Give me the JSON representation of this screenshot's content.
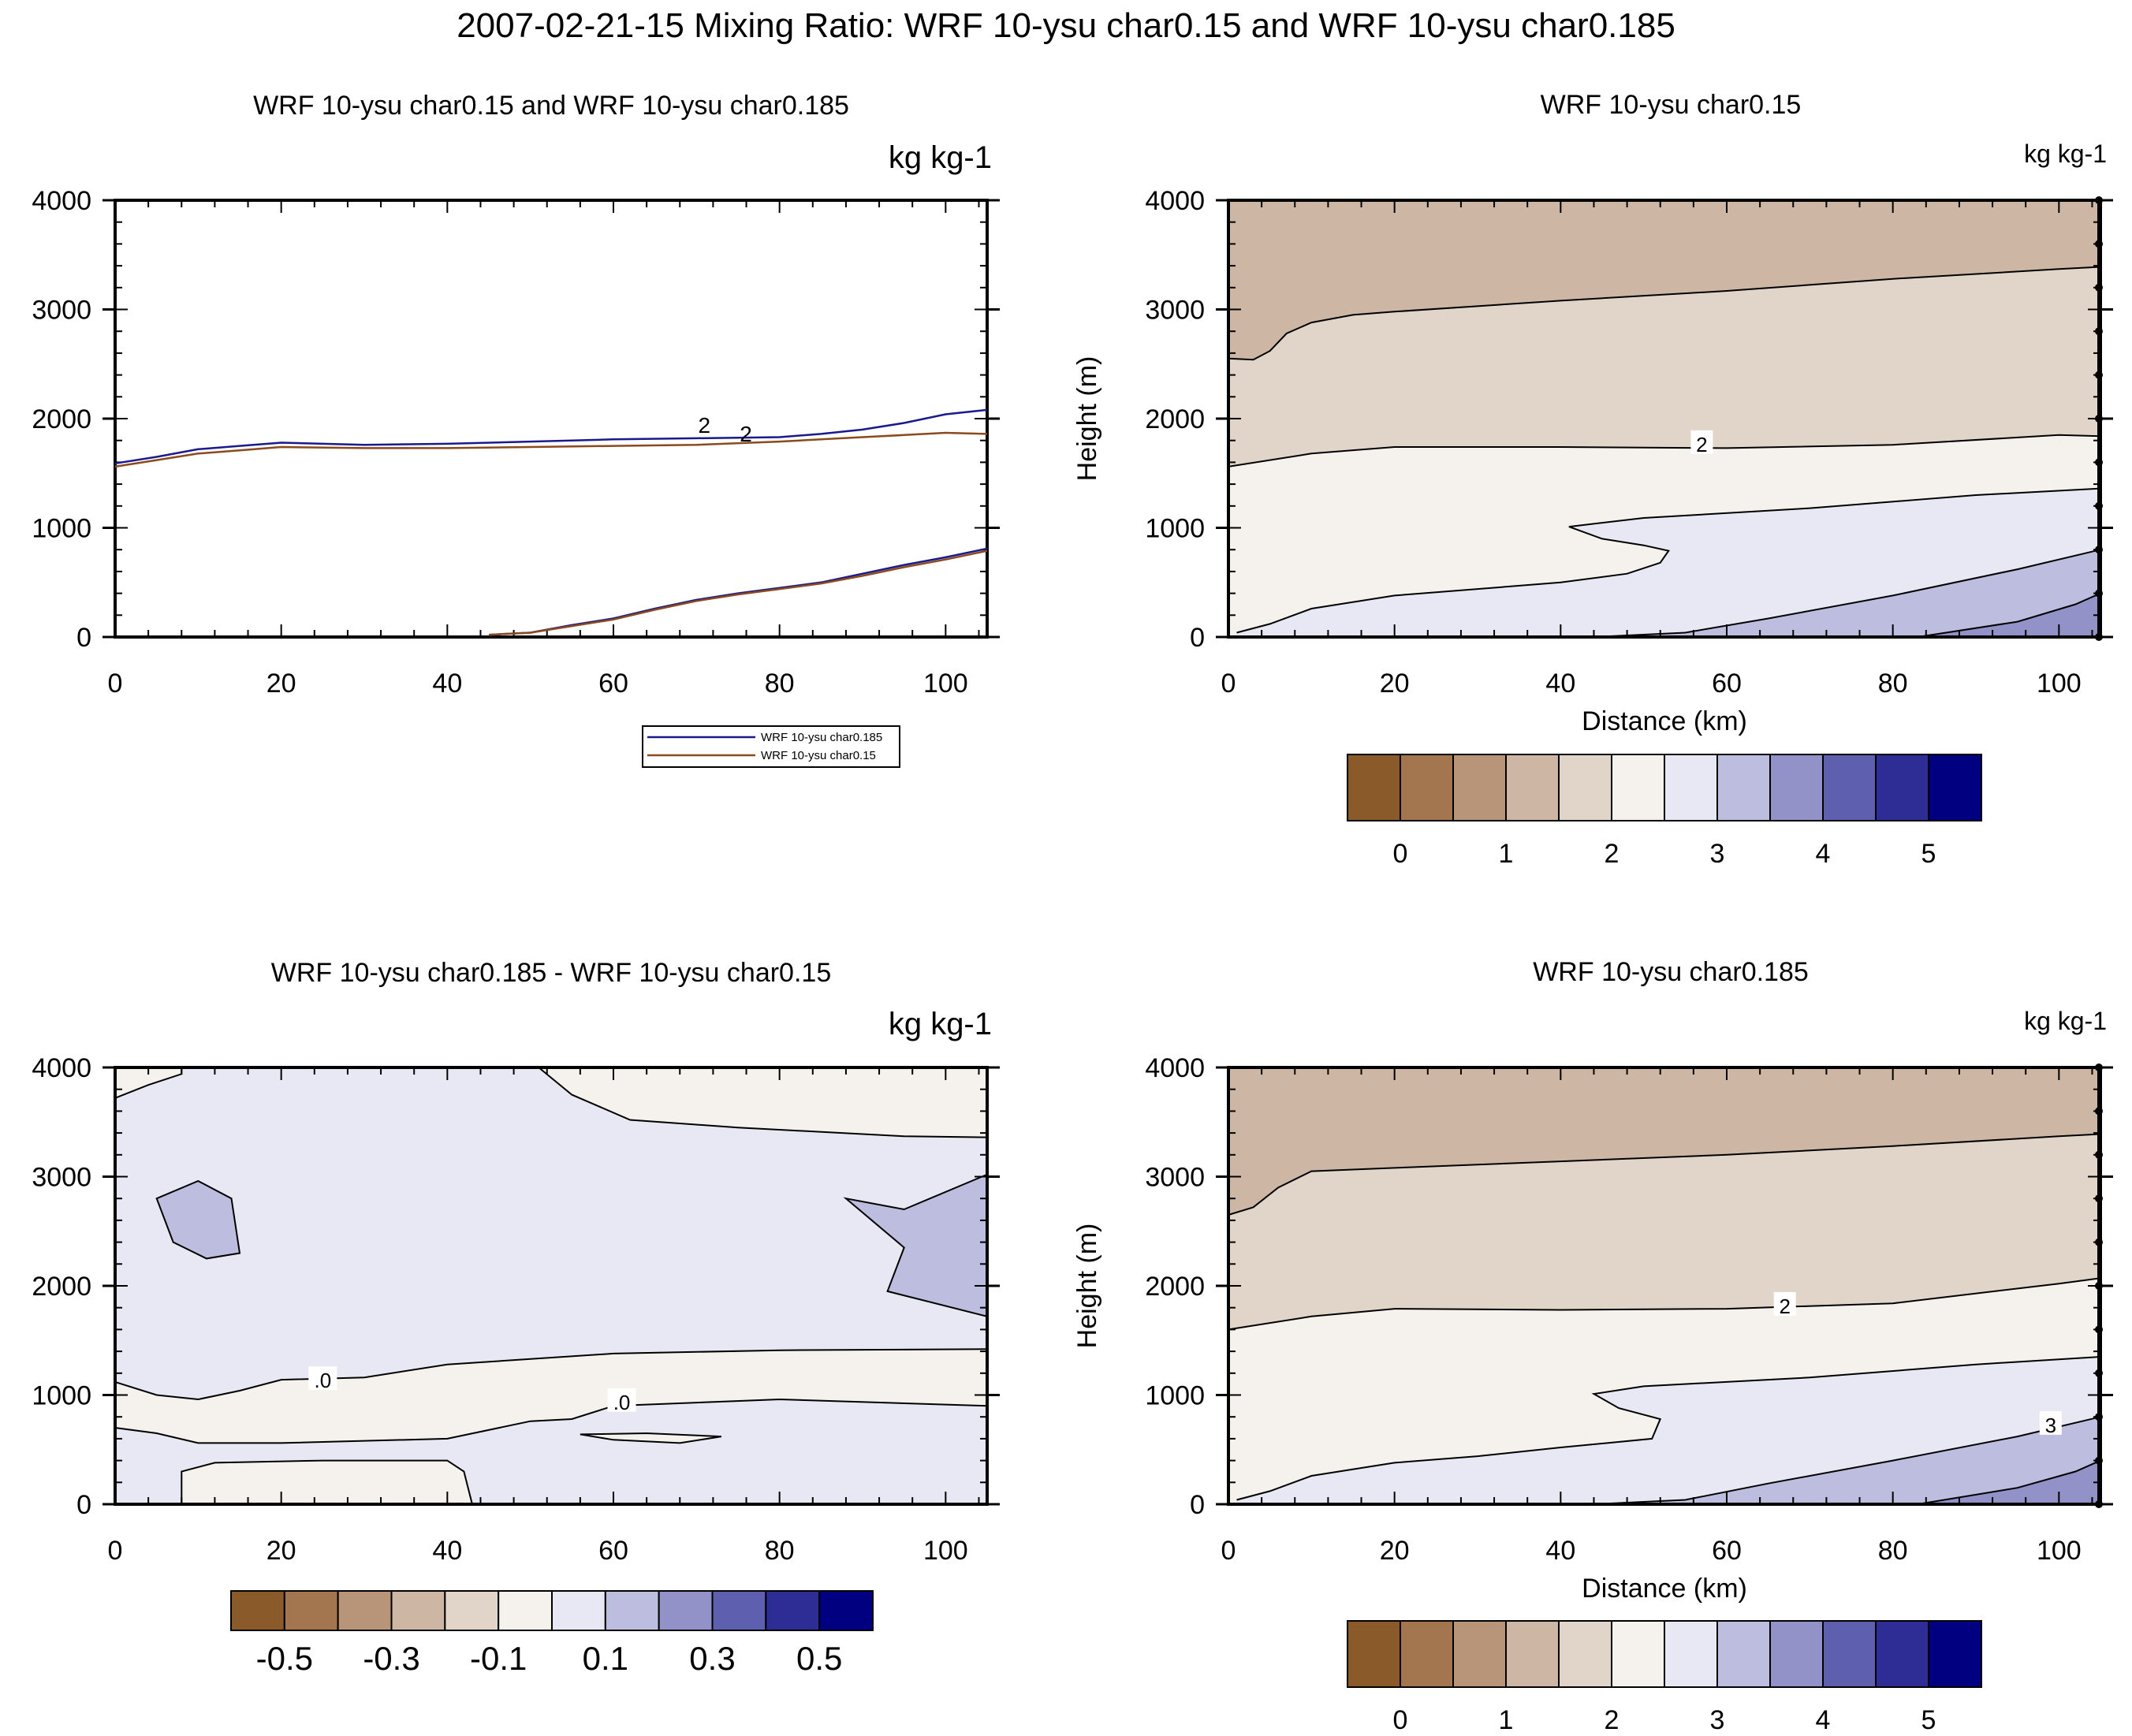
{
  "page_title": "2007-02-21-15 Mixing Ratio: WRF 10-ysu char0.15 and WRF 10-ysu char0.185",
  "colors": {
    "series_185": "#1a1a8c",
    "series_15": "#8b4a1e",
    "palette": [
      "#8b5a2b",
      "#a47650",
      "#b89478",
      "#cdb6a3",
      "#e1d5c9",
      "#f5f2ed",
      "#e8e8f4",
      "#bdbddf",
      "#9292c8",
      "#5f5fb0",
      "#2d2d95",
      "#000080"
    ]
  },
  "panels": {
    "tl": {
      "title": "WRF 10-ysu char0.15 and WRF 10-ysu char0.185",
      "units": "kg kg-1"
    },
    "tr": {
      "title": "WRF 10-ysu char0.15",
      "units": "kg kg-1",
      "xlabel": "Distance (km)",
      "ylabel": "Height (m)"
    },
    "bl": {
      "title": "WRF 10-ysu char0.185 - WRF 10-ysu char0.15",
      "units": "kg kg-1"
    },
    "br": {
      "title": "WRF 10-ysu char0.185",
      "units": "kg kg-1",
      "xlabel": "Distance (km)",
      "ylabel": "Height (m)"
    }
  },
  "legend": [
    "WRF 10-ysu char0.185",
    "WRF 10-ysu char0.15"
  ],
  "colorbars": {
    "mixing_ratio": [
      "0",
      "1",
      "2",
      "3",
      "4",
      "5"
    ],
    "difference": [
      "-0.5",
      "-0.3",
      "-0.1",
      "0.1",
      "0.3",
      "0.5"
    ]
  },
  "chart_data": [
    {
      "type": "line",
      "panel": "tl",
      "title": "WRF 10-ysu char0.15 and WRF 10-ysu char0.185",
      "units": "kg kg-1",
      "xlim": [
        0,
        105
      ],
      "ylim": [
        0,
        4000
      ],
      "xticks": [
        0,
        20,
        40,
        60,
        80,
        100
      ],
      "yticks": [
        0,
        1000,
        2000,
        3000,
        4000
      ],
      "series": [
        {
          "name": "WRF 10-ysu char0.185",
          "contour_label": "2",
          "x": [
            0,
            5,
            10,
            15,
            20,
            30,
            40,
            50,
            60,
            70,
            80,
            85,
            90,
            95,
            100,
            105
          ],
          "y": [
            1590,
            1650,
            1720,
            1750,
            1780,
            1760,
            1770,
            1790,
            1810,
            1820,
            1830,
            1860,
            1900,
            1960,
            2040,
            2080
          ]
        },
        {
          "name": "WRF 10-ysu char0.185",
          "x": [
            45,
            50,
            55,
            60,
            65,
            70,
            75,
            80,
            85,
            90,
            95,
            100,
            105
          ],
          "y": [
            20,
            40,
            110,
            170,
            260,
            340,
            400,
            450,
            500,
            580,
            660,
            730,
            810
          ]
        },
        {
          "name": "WRF 10-ysu char0.15",
          "contour_label": "2",
          "x": [
            0,
            5,
            10,
            15,
            20,
            30,
            40,
            50,
            60,
            70,
            80,
            85,
            90,
            95,
            100,
            105
          ],
          "y": [
            1560,
            1620,
            1680,
            1710,
            1740,
            1730,
            1730,
            1740,
            1750,
            1760,
            1790,
            1810,
            1830,
            1850,
            1870,
            1860
          ]
        },
        {
          "name": "WRF 10-ysu char0.15",
          "x": [
            45,
            50,
            55,
            60,
            65,
            70,
            75,
            80,
            85,
            90,
            95,
            100,
            105
          ],
          "y": [
            20,
            40,
            100,
            160,
            250,
            330,
            390,
            440,
            490,
            560,
            640,
            710,
            790
          ]
        }
      ],
      "legend_placement": "bottom-center"
    },
    {
      "type": "filled-contour",
      "panel": "tr",
      "title": "WRF 10-ysu char0.15",
      "units": "kg kg-1",
      "xlabel": "Distance (km)",
      "ylabel": "Height (m)",
      "xlim": [
        0,
        105
      ],
      "ylim": [
        0,
        4000
      ],
      "xticks": [
        0,
        20,
        40,
        60,
        80,
        100
      ],
      "yticks": [
        0,
        1000,
        2000,
        3000,
        4000
      ],
      "contour_labels": [
        {
          "x": 57,
          "y": 1770,
          "text": "2"
        }
      ],
      "levels": [
        0,
        0.5,
        1,
        1.5,
        2,
        2.5,
        3,
        3.5,
        4,
        4.5,
        5
      ],
      "fill_bands": [
        {
          "level": "1.5-2",
          "boundary": [
            [
              0,
              2550
            ],
            [
              3,
              2540
            ],
            [
              5,
              2620
            ],
            [
              7,
              2780
            ],
            [
              10,
              2880
            ],
            [
              15,
              2950
            ],
            [
              20,
              2980
            ],
            [
              40,
              3080
            ],
            [
              60,
              3170
            ],
            [
              80,
              3280
            ],
            [
              100,
              3370
            ],
            [
              105,
              3390
            ]
          ]
        },
        {
          "level": "2-2.5",
          "boundary": [
            [
              0,
              1560
            ],
            [
              10,
              1680
            ],
            [
              20,
              1740
            ],
            [
              40,
              1740
            ],
            [
              60,
              1730
            ],
            [
              80,
              1760
            ],
            [
              100,
              1850
            ],
            [
              105,
              1840
            ]
          ]
        },
        {
          "level": "2.5-3",
          "boundary": [
            [
              1,
              40
            ],
            [
              5,
              120
            ],
            [
              10,
              260
            ],
            [
              20,
              380
            ],
            [
              30,
              440
            ],
            [
              40,
              500
            ],
            [
              48,
              580
            ],
            [
              52,
              680
            ],
            [
              53,
              790
            ],
            [
              50,
              840
            ],
            [
              45,
              900
            ],
            [
              41,
              1010
            ],
            [
              50,
              1090
            ],
            [
              70,
              1180
            ],
            [
              90,
              1300
            ],
            [
              105,
              1360
            ]
          ]
        },
        {
          "level": "3-3.5",
          "boundary": [
            [
              44,
              0
            ],
            [
              55,
              40
            ],
            [
              65,
              170
            ],
            [
              80,
              380
            ],
            [
              95,
              620
            ],
            [
              105,
              800
            ]
          ]
        },
        {
          "level": "3.5-4",
          "boundary": [
            [
              83,
              0
            ],
            [
              95,
              140
            ],
            [
              102,
              300
            ],
            [
              105,
              400
            ]
          ]
        }
      ]
    },
    {
      "type": "filled-contour",
      "panel": "bl",
      "title": "WRF 10-ysu char0.185 - WRF 10-ysu char0.15",
      "units": "kg kg-1",
      "xlim": [
        0,
        105
      ],
      "ylim": [
        0,
        4000
      ],
      "xticks": [
        0,
        20,
        40,
        60,
        80,
        100
      ],
      "yticks": [
        0,
        1000,
        2000,
        3000,
        4000
      ],
      "contour_labels": [
        {
          "x": 25,
          "y": 1140,
          "text": ".0"
        },
        {
          "x": 61,
          "y": 940,
          "text": ".0"
        }
      ],
      "levels": [
        -0.5,
        -0.4,
        -0.3,
        -0.2,
        -0.1,
        0,
        0.1,
        0.2,
        0.3,
        0.4,
        0.5
      ],
      "fill_bands": [
        {
          "level": "-0.1-0",
          "region": "band between 700 and 1400 m"
        },
        {
          "level": "0-0.1",
          "region": "background"
        },
        {
          "level": "0.1-0.2",
          "region": "blobs at x~10, z~2500 and x~95, z~2400"
        }
      ]
    },
    {
      "type": "filled-contour",
      "panel": "br",
      "title": "WRF 10-ysu char0.185",
      "units": "kg kg-1",
      "xlabel": "Distance (km)",
      "ylabel": "Height (m)",
      "xlim": [
        0,
        105
      ],
      "ylim": [
        0,
        4000
      ],
      "xticks": [
        0,
        20,
        40,
        60,
        80,
        100
      ],
      "yticks": [
        0,
        1000,
        2000,
        3000,
        4000
      ],
      "contour_labels": [
        {
          "x": 67,
          "y": 1820,
          "text": "2"
        },
        {
          "x": 99,
          "y": 730,
          "text": "3"
        }
      ],
      "levels": [
        0,
        0.5,
        1,
        1.5,
        2,
        2.5,
        3,
        3.5,
        4,
        4.5,
        5
      ]
    }
  ]
}
